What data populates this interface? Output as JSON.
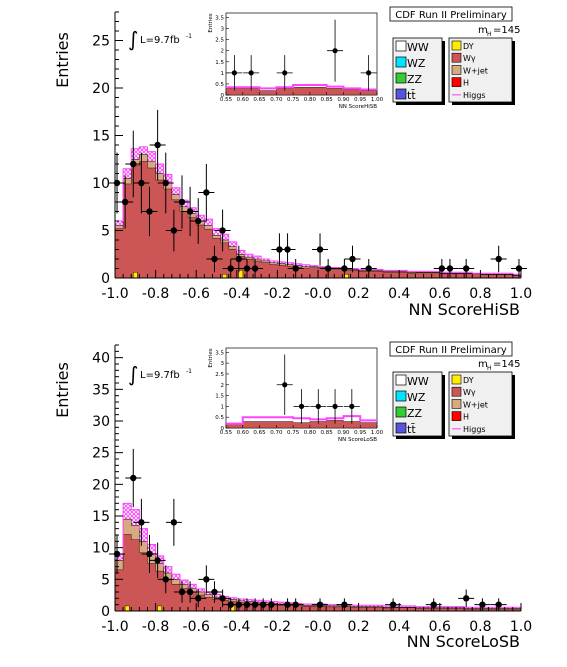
{
  "chart_data": [
    {
      "type": "histogram",
      "title": "CDF Run II Preliminary",
      "xlabel": "NN ScoreHiSB",
      "ylabel": "Entries",
      "lumi_label": "L=9.7fb",
      "lumi_sup": "-1",
      "integral_symbol": "∫",
      "mass_label": "m",
      "mass_sub": "H",
      "mass_value": "=145",
      "xlim": [
        -1.0,
        1.0
      ],
      "ylim": [
        0,
        28
      ],
      "xticks": [
        "-1.0",
        "-0.8",
        "-0.6",
        "-0.4",
        "-0.2",
        "-0.0",
        "0.2",
        "0.4",
        "0.6",
        "0.8",
        "1.0"
      ],
      "yticks": [
        "0",
        "5",
        "10",
        "15",
        "20",
        "25"
      ],
      "ytick_values": [
        0,
        5,
        10,
        15,
        20,
        25
      ],
      "bin_edges": [
        -1.0,
        -0.96,
        -0.92,
        -0.88,
        -0.84,
        -0.8,
        -0.76,
        -0.72,
        -0.68,
        -0.64,
        -0.6,
        -0.56,
        -0.52,
        -0.48,
        -0.44,
        -0.4,
        -0.36,
        -0.32,
        -0.28,
        -0.24,
        -0.2,
        -0.16,
        -0.12,
        -0.08,
        -0.04,
        0.0,
        0.04,
        0.08,
        0.12,
        0.16,
        0.2,
        0.24,
        0.28,
        0.32,
        0.36,
        0.4,
        0.44,
        0.48,
        0.52,
        0.56,
        0.6,
        0.64,
        0.68,
        0.72,
        0.76,
        0.8,
        0.84,
        0.88,
        0.92,
        0.96,
        1.0
      ],
      "background_total": [
        5.5,
        10.5,
        12.5,
        13.0,
        12.3,
        11.0,
        10.0,
        8.8,
        7.5,
        6.8,
        6.0,
        5.5,
        4.5,
        4.0,
        3.3,
        2.5,
        2.2,
        2.0,
        1.8,
        1.6,
        1.5,
        1.4,
        1.3,
        1.2,
        1.2,
        1.1,
        1.0,
        1.0,
        0.9,
        0.9,
        0.8,
        0.8,
        0.8,
        0.7,
        0.7,
        0.7,
        0.6,
        0.6,
        0.6,
        0.6,
        0.5,
        0.5,
        0.5,
        0.5,
        0.5,
        0.4,
        0.4,
        0.4,
        0.4,
        0.3
      ],
      "signal_top": [
        6.0,
        11.5,
        13.6,
        13.8,
        13.3,
        12.0,
        10.9,
        9.5,
        8.2,
        7.4,
        6.6,
        6.2,
        5.2,
        4.6,
        3.8,
        2.9,
        2.5,
        2.3,
        2.0,
        1.8,
        1.7,
        1.6,
        1.5,
        1.4,
        1.3,
        1.2,
        1.1,
        1.1,
        1.0,
        1.0,
        0.9,
        0.9,
        0.9,
        0.8,
        0.8,
        0.8,
        0.7,
        0.7,
        0.7,
        0.7,
        0.6,
        0.6,
        0.6,
        0.6,
        0.5,
        0.5,
        0.5,
        0.5,
        0.5,
        0.4
      ],
      "wgamma_top": [
        1.0,
        2.0,
        2.2,
        2.4,
        2.4,
        2.3,
        2.1,
        1.9,
        1.7,
        1.5,
        1.4,
        1.2,
        1.1,
        1.0,
        0.9,
        0.8,
        0.7,
        0.7,
        0.6,
        0.6,
        0.5,
        0.5,
        0.5,
        0.5,
        0.4,
        0.4,
        0.4,
        0.4,
        0.4,
        0.3,
        0.3,
        0.3,
        0.3,
        0.3,
        0.3,
        0.3,
        0.3,
        0.2,
        0.2,
        0.2,
        0.2,
        0.2,
        0.2,
        0.2,
        0.2,
        0.2,
        0.2,
        0.2,
        0.2,
        0.2
      ],
      "dy": [
        0,
        0,
        0.6,
        0,
        0,
        0,
        0,
        0,
        0,
        0,
        0,
        0,
        0,
        0.4,
        0,
        0.8,
        0,
        0,
        0,
        0,
        0,
        0,
        0,
        0,
        0,
        0,
        0,
        0,
        0.4,
        0,
        0,
        0,
        0,
        0,
        0,
        0,
        0,
        0,
        0,
        0,
        0,
        0,
        0,
        0,
        0,
        0,
        0,
        0,
        0,
        0
      ],
      "data_points": [
        {
          "x": -0.99,
          "y": 10,
          "err": 3.2
        },
        {
          "x": -0.95,
          "y": 8,
          "err": 2.8
        },
        {
          "x": -0.91,
          "y": 12,
          "err": 3.5
        },
        {
          "x": -0.87,
          "y": 10,
          "err": 3.2
        },
        {
          "x": -0.83,
          "y": 7,
          "err": 2.6
        },
        {
          "x": -0.79,
          "y": 14,
          "err": 3.7
        },
        {
          "x": -0.75,
          "y": 10,
          "err": 3.2
        },
        {
          "x": -0.71,
          "y": 5,
          "err": 2.2
        },
        {
          "x": -0.67,
          "y": 8,
          "err": 2.8
        },
        {
          "x": -0.63,
          "y": 7,
          "err": 2.6
        },
        {
          "x": -0.59,
          "y": 6,
          "err": 2.4
        },
        {
          "x": -0.55,
          "y": 9,
          "err": 3.0
        },
        {
          "x": -0.51,
          "y": 2,
          "err": 1.4
        },
        {
          "x": -0.47,
          "y": 5,
          "err": 2.2
        },
        {
          "x": -0.43,
          "y": 1,
          "err": 1.0
        },
        {
          "x": -0.39,
          "y": 2,
          "err": 1.4
        },
        {
          "x": -0.35,
          "y": 1,
          "err": 1.0
        },
        {
          "x": -0.31,
          "y": 1,
          "err": 1.0
        },
        {
          "x": -0.19,
          "y": 3,
          "err": 1.7
        },
        {
          "x": -0.15,
          "y": 3,
          "err": 1.7
        },
        {
          "x": -0.11,
          "y": 1,
          "err": 1.0
        },
        {
          "x": 0.01,
          "y": 3,
          "err": 1.7
        },
        {
          "x": 0.05,
          "y": 1,
          "err": 1.0
        },
        {
          "x": 0.13,
          "y": 1,
          "err": 1.0
        },
        {
          "x": 0.17,
          "y": 2,
          "err": 1.4
        },
        {
          "x": 0.25,
          "y": 1,
          "err": 1.0
        },
        {
          "x": 0.61,
          "y": 1,
          "err": 1.0
        },
        {
          "x": 0.65,
          "y": 1,
          "err": 1.0
        },
        {
          "x": 0.73,
          "y": 1,
          "err": 1.0
        },
        {
          "x": 0.89,
          "y": 2,
          "err": 1.4
        },
        {
          "x": 0.99,
          "y": 1,
          "err": 1.0
        }
      ],
      "inset": {
        "ylabel": "Entries",
        "xlabel": "NN ScoreHiSB",
        "xlim": [
          0.55,
          1.0
        ],
        "ylim": [
          0,
          3.7
        ],
        "xticks": [
          "0.55",
          "0.60",
          "0.65",
          "0.70",
          "0.75",
          "0.80",
          "0.85",
          "0.90",
          "0.95",
          "1.00"
        ],
        "yticks": [
          "0",
          "0.5",
          "1",
          "1.5",
          "2",
          "2.5",
          "3",
          "3.5"
        ],
        "ytick_values": [
          0,
          0.5,
          1,
          1.5,
          2,
          2.5,
          3,
          3.5
        ],
        "bin_edges": [
          0.55,
          0.6,
          0.65,
          0.7,
          0.75,
          0.8,
          0.85,
          0.9,
          0.95,
          1.0
        ],
        "background_total": [
          0.3,
          0.3,
          0.2,
          0.3,
          0.35,
          0.35,
          0.3,
          0.25,
          0.2
        ],
        "signal_top": [
          0.35,
          0.35,
          0.3,
          0.35,
          0.45,
          0.45,
          0.38,
          0.3,
          0.25
        ],
        "data_points": [
          {
            "x": 0.575,
            "y": 1,
            "err": 0.8
          },
          {
            "x": 0.625,
            "y": 1,
            "err": 0.8
          },
          {
            "x": 0.725,
            "y": 1,
            "err": 0.8
          },
          {
            "x": 0.875,
            "y": 2,
            "err": 1.4
          },
          {
            "x": 0.975,
            "y": 1,
            "err": 0.8
          }
        ]
      },
      "legend": [
        {
          "label": "WW",
          "color": "#ffffff",
          "column": 0
        },
        {
          "label": "WZ",
          "color": "#00e5ff",
          "column": 0
        },
        {
          "label": "ZZ",
          "color": "#33cc33",
          "column": 0
        },
        {
          "label": "tt̄",
          "color": "#5555dd",
          "column": 0
        },
        {
          "label": "DY",
          "color": "#ffee00",
          "column": 1
        },
        {
          "label": "Wγ",
          "color": "#cc5555",
          "column": 1
        },
        {
          "label": "W+jet",
          "color": "#d8aa80",
          "column": 1
        },
        {
          "label": "H",
          "color": "#ff0000",
          "column": 1
        },
        {
          "label": "Higgs",
          "color": "#ff55ff",
          "column": 1,
          "line": true
        }
      ]
    },
    {
      "type": "histogram",
      "title": "CDF Run II Preliminary",
      "xlabel": "NN ScoreLoSB",
      "ylabel": "Entries",
      "lumi_label": "L=9.7fb",
      "lumi_sup": "-1",
      "integral_symbol": "∫",
      "mass_label": "m",
      "mass_sub": "H",
      "mass_value": "=145",
      "xlim": [
        -1.0,
        1.0
      ],
      "ylim": [
        0,
        42
      ],
      "xticks": [
        "-1.0",
        "-0.8",
        "-0.6",
        "-0.4",
        "-0.2",
        "-0.0",
        "0.2",
        "0.4",
        "0.6",
        "0.8",
        "1.0"
      ],
      "yticks": [
        "0",
        "5",
        "10",
        "15",
        "20",
        "25",
        "30",
        "35",
        "40"
      ],
      "ytick_values": [
        0,
        5,
        10,
        15,
        20,
        25,
        30,
        35,
        40
      ],
      "bin_edges": [
        -1.0,
        -0.96,
        -0.92,
        -0.88,
        -0.84,
        -0.8,
        -0.76,
        -0.72,
        -0.68,
        -0.64,
        -0.6,
        -0.56,
        -0.52,
        -0.48,
        -0.44,
        -0.4,
        -0.36,
        -0.32,
        -0.28,
        -0.24,
        -0.2,
        -0.16,
        -0.12,
        -0.08,
        -0.04,
        0.0,
        0.04,
        0.08,
        0.12,
        0.16,
        0.2,
        0.24,
        0.28,
        0.32,
        0.36,
        0.4,
        0.44,
        0.48,
        0.52,
        0.56,
        0.6,
        0.64,
        0.68,
        0.72,
        0.76,
        0.8,
        0.84,
        0.88,
        0.92,
        0.96,
        1.0
      ],
      "background_total": [
        8.0,
        14.5,
        13.5,
        11.0,
        9.0,
        7.5,
        6.0,
        5.0,
        4.2,
        3.6,
        3.0,
        2.6,
        2.2,
        2.0,
        1.8,
        1.6,
        1.5,
        1.4,
        1.3,
        1.2,
        1.1,
        1.0,
        1.0,
        0.9,
        0.9,
        0.9,
        0.8,
        0.8,
        0.8,
        0.7,
        0.7,
        0.7,
        0.7,
        0.6,
        0.6,
        0.6,
        0.6,
        0.5,
        0.5,
        0.5,
        0.5,
        0.5,
        0.5,
        0.4,
        0.4,
        0.4,
        0.4,
        0.4,
        0.4,
        0.4
      ],
      "signal_top": [
        9.0,
        17.0,
        16.0,
        13.0,
        10.5,
        8.7,
        7.0,
        5.8,
        4.9,
        4.2,
        3.5,
        3.0,
        2.6,
        2.3,
        2.1,
        1.9,
        1.8,
        1.7,
        1.6,
        1.5,
        1.4,
        1.3,
        1.2,
        1.1,
        1.1,
        1.1,
        1.0,
        1.0,
        1.0,
        0.9,
        0.9,
        0.9,
        0.9,
        0.8,
        0.8,
        0.8,
        0.8,
        0.7,
        0.7,
        0.7,
        0.7,
        0.7,
        0.7,
        0.6,
        0.6,
        0.6,
        0.6,
        0.6,
        0.6,
        0.6
      ],
      "wgamma_top": [
        5.0,
        8.0,
        7.5,
        6.0,
        5.0,
        4.0,
        3.2,
        2.6,
        2.2,
        1.9,
        1.6,
        1.4,
        1.2,
        1.1,
        1.0,
        0.9,
        0.8,
        0.8,
        0.7,
        0.7,
        0.6,
        0.6,
        0.6,
        0.5,
        0.5,
        0.5,
        0.5,
        0.5,
        0.4,
        0.4,
        0.4,
        0.4,
        0.4,
        0.4,
        0.3,
        0.3,
        0.3,
        0.3,
        0.3,
        0.3,
        0.3,
        0.3,
        0.3,
        0.3,
        0.3,
        0.3,
        0.3,
        0.3,
        0.3,
        0.3
      ],
      "dy": [
        0,
        0.8,
        0,
        0,
        0,
        0.8,
        0,
        0,
        0,
        0,
        0,
        0,
        0,
        0,
        1.0,
        0,
        0,
        0,
        0,
        0,
        0,
        0,
        0,
        0,
        0,
        0,
        0,
        0,
        0,
        0,
        0,
        0,
        0,
        0,
        0,
        0,
        0,
        0,
        0,
        0,
        0,
        0,
        0,
        0,
        0,
        0,
        0,
        0,
        0,
        0
      ],
      "data_points": [
        {
          "x": -0.99,
          "y": 9,
          "err": 3.0
        },
        {
          "x": -0.91,
          "y": 21,
          "err": 4.6
        },
        {
          "x": -0.87,
          "y": 14,
          "err": 3.7
        },
        {
          "x": -0.83,
          "y": 9,
          "err": 3.0
        },
        {
          "x": -0.79,
          "y": 8,
          "err": 2.8
        },
        {
          "x": -0.75,
          "y": 5,
          "err": 2.2
        },
        {
          "x": -0.71,
          "y": 14,
          "err": 3.7
        },
        {
          "x": -0.67,
          "y": 3,
          "err": 1.7
        },
        {
          "x": -0.63,
          "y": 3,
          "err": 1.7
        },
        {
          "x": -0.59,
          "y": 2,
          "err": 1.4
        },
        {
          "x": -0.55,
          "y": 5,
          "err": 2.2
        },
        {
          "x": -0.51,
          "y": 3,
          "err": 1.7
        },
        {
          "x": -0.47,
          "y": 2,
          "err": 1.4
        },
        {
          "x": -0.43,
          "y": 1,
          "err": 1.0
        },
        {
          "x": -0.39,
          "y": 1,
          "err": 1.0
        },
        {
          "x": -0.35,
          "y": 1,
          "err": 1.0
        },
        {
          "x": -0.31,
          "y": 1,
          "err": 1.0
        },
        {
          "x": -0.27,
          "y": 1,
          "err": 1.0
        },
        {
          "x": -0.23,
          "y": 1,
          "err": 1.0
        },
        {
          "x": -0.15,
          "y": 1,
          "err": 1.0
        },
        {
          "x": -0.11,
          "y": 1,
          "err": 1.0
        },
        {
          "x": 0.01,
          "y": 1,
          "err": 1.0
        },
        {
          "x": 0.13,
          "y": 1,
          "err": 1.0
        },
        {
          "x": 0.37,
          "y": 1,
          "err": 1.0
        },
        {
          "x": 0.57,
          "y": 1,
          "err": 1.0
        },
        {
          "x": 0.73,
          "y": 2,
          "err": 1.4
        },
        {
          "x": 0.81,
          "y": 1,
          "err": 1.0
        },
        {
          "x": 0.89,
          "y": 1,
          "err": 1.0
        }
      ],
      "inset": {
        "ylabel": "Entries",
        "xlabel": "NN ScoreLoSB",
        "xlim": [
          0.55,
          1.0
        ],
        "ylim": [
          0,
          3.7
        ],
        "xticks": [
          "0.55",
          "0.60",
          "0.65",
          "0.70",
          "0.75",
          "0.80",
          "0.85",
          "0.90",
          "0.95",
          "1.00"
        ],
        "yticks": [
          "0",
          "0.5",
          "1",
          "1.5",
          "2",
          "2.5",
          "3",
          "3.5"
        ],
        "ytick_values": [
          0,
          0.5,
          1,
          1.5,
          2,
          2.5,
          3,
          3.5
        ],
        "bin_edges": [
          0.55,
          0.6,
          0.65,
          0.7,
          0.75,
          0.8,
          0.85,
          0.9,
          0.95,
          1.0
        ],
        "background_total": [
          0.2,
          0.3,
          0.3,
          0.3,
          0.25,
          0.3,
          0.35,
          0.3,
          0.25
        ],
        "signal_top": [
          0.2,
          0.5,
          0.5,
          0.5,
          0.45,
          0.4,
          0.45,
          0.55,
          0.35
        ],
        "data_points": [
          {
            "x": 0.725,
            "y": 2,
            "err": 1.4
          },
          {
            "x": 0.775,
            "y": 1,
            "err": 0.8
          },
          {
            "x": 0.825,
            "y": 1,
            "err": 0.8
          },
          {
            "x": 0.875,
            "y": 1,
            "err": 0.8
          },
          {
            "x": 0.925,
            "y": 1,
            "err": 0.8
          }
        ]
      },
      "legend": [
        {
          "label": "WW",
          "color": "#ffffff",
          "column": 0
        },
        {
          "label": "WZ",
          "color": "#00e5ff",
          "column": 0
        },
        {
          "label": "ZZ",
          "color": "#33cc33",
          "column": 0
        },
        {
          "label": "tt̄",
          "color": "#5555dd",
          "column": 0
        },
        {
          "label": "DY",
          "color": "#ffee00",
          "column": 1
        },
        {
          "label": "Wγ",
          "color": "#cc5555",
          "column": 1
        },
        {
          "label": "W+jet",
          "color": "#d8aa80",
          "column": 1
        },
        {
          "label": "H",
          "color": "#ff0000",
          "column": 1
        },
        {
          "label": "Higgs",
          "color": "#ff55ff",
          "column": 1,
          "line": true
        }
      ]
    }
  ],
  "colors": {
    "wgamma_fill": "#cc5555",
    "wjet_fill": "#d8aa80",
    "dy_fill": "#ffee00",
    "signal_hatch": "#ff44ff",
    "data_marker": "#000000"
  }
}
